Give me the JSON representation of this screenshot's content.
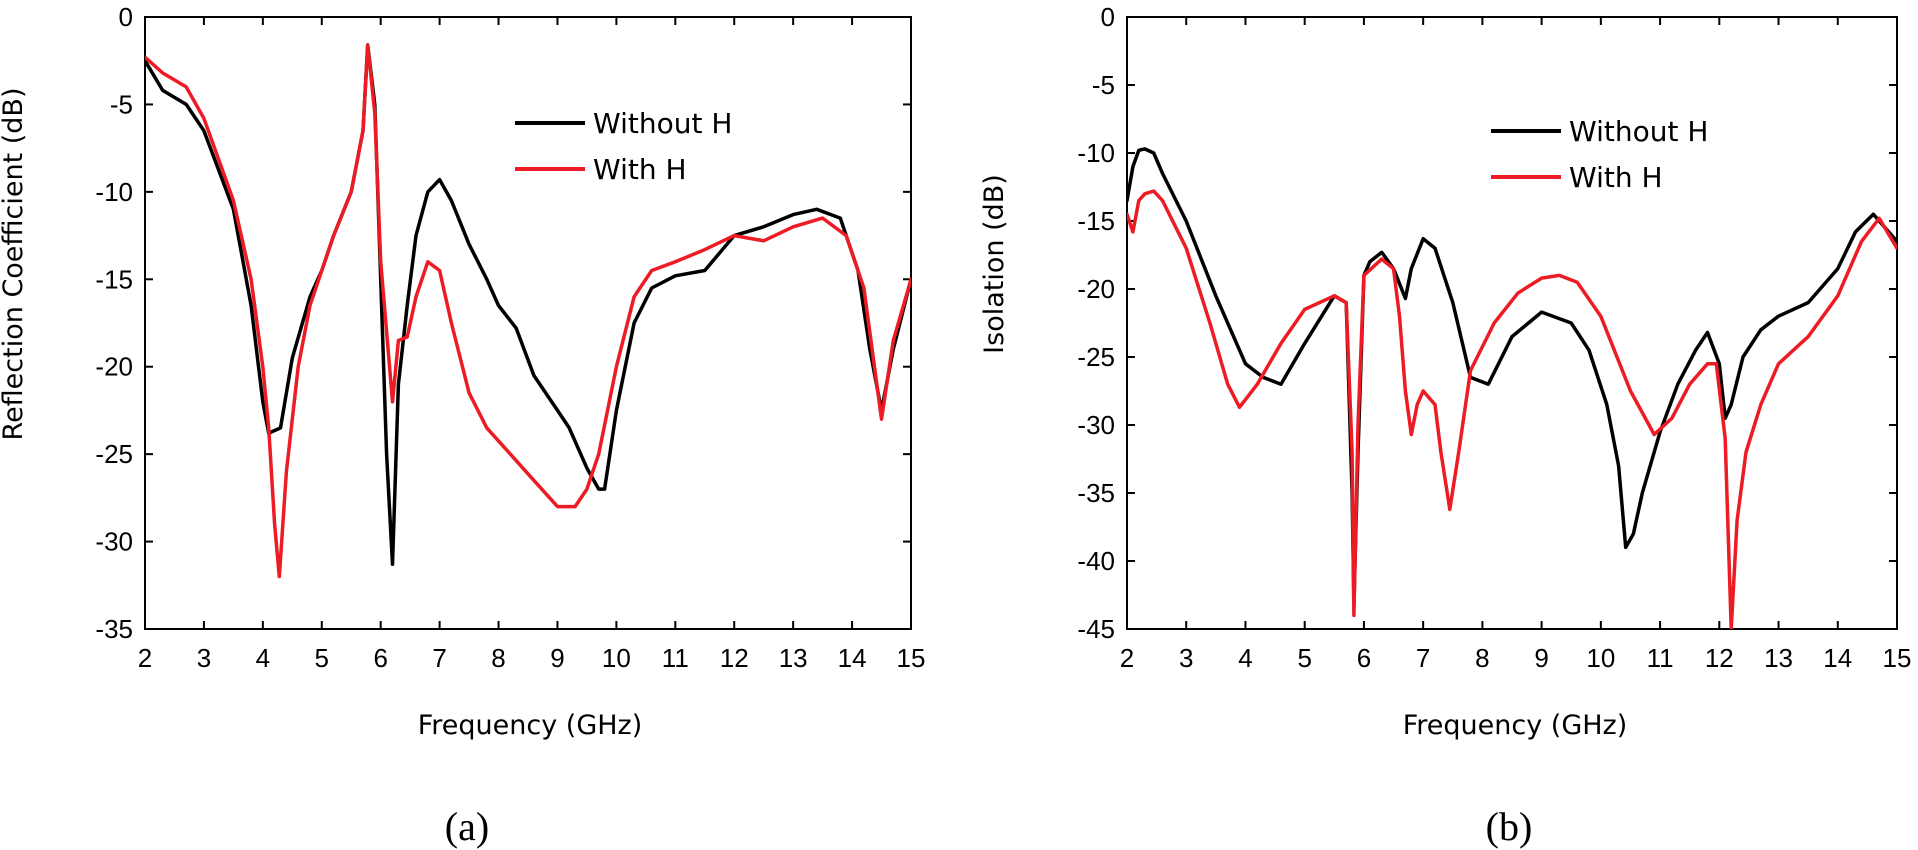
{
  "chart_data": [
    {
      "type": "line",
      "panel_label": "(a)",
      "xlabel": "Frequency (GHz)",
      "ylabel": "Reflection Coefficient (dB)",
      "xlim": [
        2,
        15
      ],
      "ylim": [
        -35,
        0
      ],
      "xticks": [
        "2",
        "3",
        "4",
        "5",
        "6",
        "7",
        "8",
        "9",
        "10",
        "11",
        "12",
        "13",
        "14",
        "15"
      ],
      "yticks": [
        "0",
        "-5",
        "-10",
        "-15",
        "-20",
        "-25",
        "-30",
        "-35"
      ],
      "grid": false,
      "legend_position": "top-right",
      "series": [
        {
          "name": "Without H",
          "color": "#000000",
          "x": [
            2.0,
            2.3,
            2.7,
            3.0,
            3.5,
            3.8,
            4.0,
            4.1,
            4.3,
            4.5,
            4.8,
            5.0,
            5.2,
            5.5,
            5.7,
            5.78,
            5.9,
            6.0,
            6.1,
            6.2,
            6.3,
            6.45,
            6.6,
            6.8,
            7.0,
            7.2,
            7.5,
            7.8,
            8.0,
            8.3,
            8.6,
            9.0,
            9.2,
            9.5,
            9.7,
            9.8,
            10.0,
            10.3,
            10.6,
            11.0,
            11.5,
            12.0,
            12.5,
            13.0,
            13.4,
            13.8,
            14.1,
            14.3,
            14.5,
            14.7,
            15.0
          ],
          "y": [
            -2.5,
            -4.2,
            -5.0,
            -6.5,
            -11.0,
            -16.5,
            -22.0,
            -23.8,
            -23.5,
            -19.5,
            -16.0,
            -14.5,
            -12.5,
            -10.0,
            -6.5,
            -1.6,
            -5.0,
            -15.0,
            -25.0,
            -31.3,
            -21.0,
            -16.5,
            -12.5,
            -10.0,
            -9.3,
            -10.5,
            -13.0,
            -15.0,
            -16.5,
            -17.8,
            -20.5,
            -22.5,
            -23.5,
            -25.8,
            -27.0,
            -27.0,
            -22.5,
            -17.5,
            -15.5,
            -14.8,
            -14.5,
            -12.5,
            -12.0,
            -11.3,
            -11.0,
            -11.5,
            -14.5,
            -19.0,
            -22.5,
            -19.0,
            -15.0
          ]
        },
        {
          "name": "With H",
          "color": "#ed1c24",
          "x": [
            2.0,
            2.3,
            2.7,
            3.0,
            3.5,
            3.8,
            4.0,
            4.1,
            4.2,
            4.28,
            4.4,
            4.6,
            4.8,
            5.0,
            5.2,
            5.5,
            5.7,
            5.78,
            5.9,
            6.0,
            6.1,
            6.2,
            6.3,
            6.45,
            6.6,
            6.7,
            6.8,
            7.0,
            7.2,
            7.5,
            7.8,
            8.2,
            8.6,
            9.0,
            9.3,
            9.5,
            9.7,
            10.0,
            10.3,
            10.6,
            11.0,
            11.5,
            12.0,
            12.5,
            13.0,
            13.5,
            13.9,
            14.2,
            14.5,
            14.7,
            15.0
          ],
          "y": [
            -2.3,
            -3.2,
            -4.0,
            -5.8,
            -10.5,
            -15.0,
            -20.0,
            -23.5,
            -29.0,
            -32.0,
            -26.0,
            -20.0,
            -16.5,
            -14.5,
            -12.5,
            -10.0,
            -6.5,
            -1.6,
            -5.5,
            -14.0,
            -18.0,
            -22.0,
            -18.5,
            -18.3,
            -16.0,
            -15.0,
            -14.0,
            -14.5,
            -17.5,
            -21.5,
            -23.5,
            -25.0,
            -26.5,
            -28.0,
            -28.0,
            -27.0,
            -25.0,
            -20.0,
            -16.0,
            -14.5,
            -14.0,
            -13.3,
            -12.5,
            -12.8,
            -12.0,
            -11.5,
            -12.5,
            -15.5,
            -23.0,
            -18.5,
            -15.0
          ]
        }
      ]
    },
    {
      "type": "line",
      "panel_label": "(b)",
      "xlabel": "Frequency (GHz)",
      "ylabel": "Isolation (dB)",
      "xlim": [
        2,
        15
      ],
      "ylim": [
        -45,
        0
      ],
      "xticks": [
        "2",
        "3",
        "4",
        "5",
        "6",
        "7",
        "8",
        "9",
        "10",
        "11",
        "12",
        "13",
        "14",
        "15"
      ],
      "yticks": [
        "0",
        "-5",
        "-10",
        "-15",
        "-20",
        "-25",
        "-30",
        "-35",
        "-40",
        "-45"
      ],
      "grid": false,
      "legend_position": "top-right",
      "series": [
        {
          "name": "Without H",
          "color": "#000000",
          "x": [
            2.0,
            2.1,
            2.2,
            2.3,
            2.45,
            2.6,
            3.0,
            3.5,
            4.0,
            4.3,
            4.6,
            5.0,
            5.5,
            5.7,
            5.8,
            5.83,
            5.9,
            6.0,
            6.1,
            6.3,
            6.5,
            6.7,
            6.8,
            7.0,
            7.2,
            7.5,
            7.8,
            8.1,
            8.5,
            9.0,
            9.5,
            9.8,
            10.1,
            10.3,
            10.42,
            10.55,
            10.7,
            11.0,
            11.3,
            11.6,
            11.8,
            12.0,
            12.1,
            12.2,
            12.4,
            12.7,
            13.0,
            13.5,
            14.0,
            14.3,
            14.6,
            15.0
          ],
          "y": [
            -13.5,
            -11.0,
            -9.8,
            -9.7,
            -10.0,
            -11.5,
            -15.0,
            -20.5,
            -25.5,
            -26.5,
            -27.0,
            -24.0,
            -20.5,
            -21.0,
            -35.0,
            -43.2,
            -32.0,
            -19.0,
            -18.0,
            -17.3,
            -18.5,
            -20.7,
            -18.5,
            -16.3,
            -17.0,
            -21.0,
            -26.5,
            -27.0,
            -23.5,
            -21.7,
            -22.5,
            -24.5,
            -28.5,
            -33.0,
            -39.0,
            -38.0,
            -35.0,
            -30.5,
            -27.0,
            -24.5,
            -23.2,
            -25.5,
            -29.5,
            -28.5,
            -25.0,
            -23.0,
            -22.0,
            -21.0,
            -18.5,
            -15.8,
            -14.5,
            -16.5
          ]
        },
        {
          "name": "With H",
          "color": "#ed1c24",
          "x": [
            2.0,
            2.1,
            2.2,
            2.3,
            2.45,
            2.6,
            3.0,
            3.4,
            3.7,
            3.9,
            4.2,
            4.6,
            5.0,
            5.5,
            5.7,
            5.8,
            5.83,
            5.9,
            6.0,
            6.3,
            6.5,
            6.6,
            6.7,
            6.8,
            6.9,
            7.0,
            7.2,
            7.3,
            7.45,
            7.6,
            7.8,
            8.2,
            8.6,
            9.0,
            9.3,
            9.6,
            10.0,
            10.5,
            10.9,
            11.2,
            11.5,
            11.8,
            11.95,
            12.1,
            12.2,
            12.3,
            12.45,
            12.7,
            13.0,
            13.5,
            14.0,
            14.4,
            14.7,
            15.0
          ],
          "y": [
            -14.5,
            -15.8,
            -13.5,
            -13.0,
            -12.8,
            -13.5,
            -17.0,
            -22.5,
            -27.0,
            -28.7,
            -27.0,
            -24.0,
            -21.5,
            -20.5,
            -21.0,
            -32.0,
            -44.0,
            -30.0,
            -19.0,
            -17.8,
            -18.5,
            -22.0,
            -27.5,
            -30.7,
            -28.5,
            -27.5,
            -28.5,
            -32.0,
            -36.2,
            -32.0,
            -26.0,
            -22.5,
            -20.3,
            -19.2,
            -19.0,
            -19.5,
            -22.0,
            -27.5,
            -30.7,
            -29.5,
            -27.0,
            -25.5,
            -25.5,
            -31.0,
            -45.0,
            -37.0,
            -32.0,
            -28.5,
            -25.5,
            -23.5,
            -20.5,
            -16.5,
            -14.8,
            -17.0
          ]
        }
      ]
    }
  ]
}
